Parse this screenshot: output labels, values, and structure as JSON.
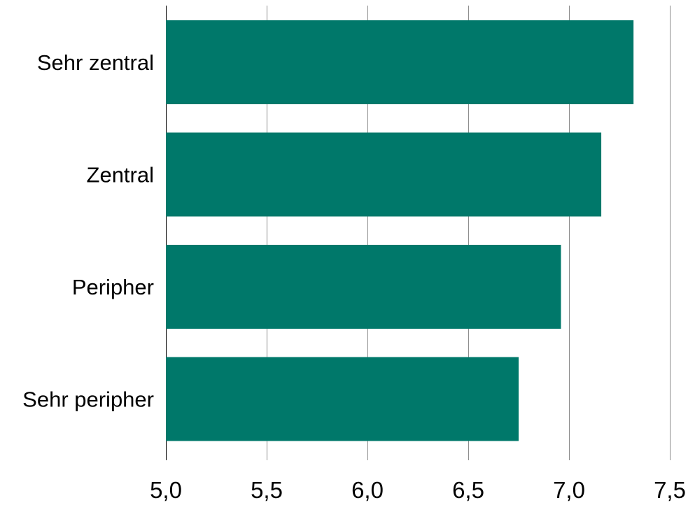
{
  "chart_data": {
    "type": "bar",
    "orientation": "horizontal",
    "categories": [
      "Sehr zentral",
      "Zentral",
      "Peripher",
      "Sehr peripher"
    ],
    "values": [
      7.32,
      7.16,
      6.96,
      6.75
    ],
    "xlim": [
      5.0,
      7.5
    ],
    "x_ticks": [
      5.0,
      5.5,
      6.0,
      6.5,
      7.0,
      7.5
    ],
    "x_tick_labels": [
      "5,0",
      "5,5",
      "6,0",
      "6,5",
      "7,0",
      "7,5"
    ],
    "grid": "vertical",
    "bar_color": "#00786a",
    "title": "",
    "xlabel": "",
    "ylabel": ""
  }
}
